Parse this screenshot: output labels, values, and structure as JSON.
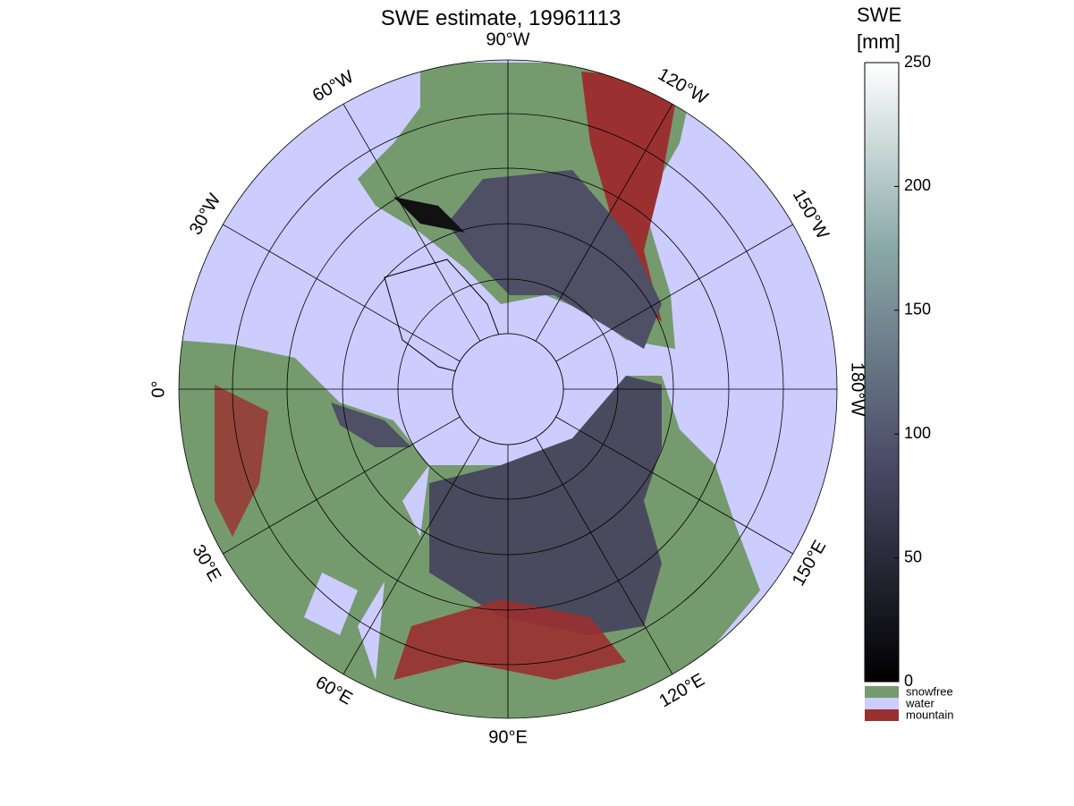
{
  "title": "SWE estimate, 19961113",
  "colorbar": {
    "label": [
      "SWE",
      "[mm]"
    ],
    "lim": [
      0,
      250
    ],
    "ticks": [
      0,
      50,
      100,
      150,
      200,
      250
    ],
    "categories": [
      {
        "name": "snowfree",
        "color": "#759a6e"
      },
      {
        "name": "water",
        "color": "#ccccff"
      },
      {
        "name": "mountain",
        "color": "#9b3030"
      }
    ]
  },
  "map": {
    "meridians": [
      {
        "lon": -90,
        "label": "90°W"
      },
      {
        "lon": -120,
        "label": "120°W"
      },
      {
        "lon": -150,
        "label": "150°W"
      },
      {
        "lon": 180,
        "label": "180°W"
      },
      {
        "lon": 150,
        "label": "150°E"
      },
      {
        "lon": 120,
        "label": "120°E"
      },
      {
        "lon": 90,
        "label": "90°E"
      },
      {
        "lon": 60,
        "label": "60°E"
      },
      {
        "lon": 30,
        "label": "30°E"
      },
      {
        "lon": 0,
        "label": "0°"
      },
      {
        "lon": -30,
        "label": "30°W"
      },
      {
        "lon": -60,
        "label": "60°W"
      }
    ]
  }
}
